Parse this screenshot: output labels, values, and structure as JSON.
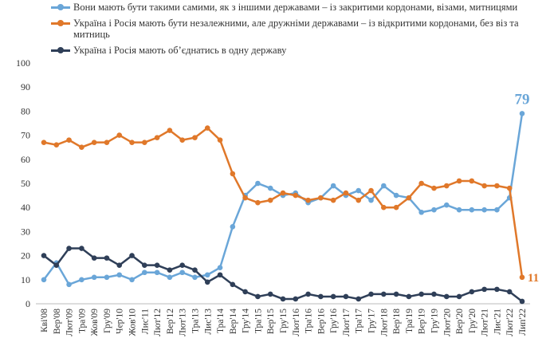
{
  "chart_data": {
    "type": "line",
    "categories": [
      "Кві'08",
      "Вер'08",
      "Лют'09",
      "Тра'09",
      "Жов'09",
      "Гру'09",
      "Чер'10",
      "Жов'10",
      "Лис'11",
      "Лют'12",
      "Вер'12",
      "Лют'13",
      "Тра'13",
      "Лис'13",
      "Тра'14",
      "Вер'14",
      "Гру'14",
      "Тра'15",
      "Вер'15",
      "Гру'15",
      "Лют'16",
      "Тра'16",
      "Вер'16",
      "Гру'16",
      "Лют'17",
      "Тра'17",
      "Гру'17",
      "Лют'18",
      "Вер'18",
      "Тра'19",
      "Вер'19",
      "Гру'19",
      "Лют'20",
      "Вер'20",
      "Гру'20",
      "Лют'21",
      "Лис'21",
      "Лют'22",
      "Лип'22"
    ],
    "series": [
      {
        "name": "Вони мають бути такими самими, як з іншими державами – із закритими кордонами, візами, митницями",
        "color": "#6aa6d8",
        "labeled_last": true,
        "values": [
          10,
          17,
          8,
          10,
          11,
          11,
          12,
          10,
          13,
          13,
          11,
          13,
          11,
          12,
          15,
          32,
          45,
          50,
          48,
          45,
          46,
          42,
          44,
          49,
          45,
          47,
          43,
          49,
          45,
          44,
          38,
          39,
          41,
          39,
          39,
          39,
          39,
          44,
          79
        ]
      },
      {
        "name": "Україна і Росія мають бути незалежними, але дружніми державами – із відкритими кордонами, без віз та митниць",
        "color": "#e0782a",
        "labeled_last": true,
        "values": [
          67,
          66,
          68,
          65,
          67,
          67,
          70,
          67,
          67,
          69,
          72,
          68,
          69,
          73,
          68,
          54,
          44,
          42,
          43,
          46,
          45,
          43,
          44,
          43,
          46,
          43,
          47,
          40,
          40,
          44,
          50,
          48,
          49,
          51,
          51,
          49,
          49,
          48,
          11
        ]
      },
      {
        "name": "Україна і Росія мають об’єднатись в одну державу",
        "color": "#2f3f58",
        "labeled_last": false,
        "values": [
          20,
          16,
          23,
          23,
          19,
          19,
          16,
          20,
          16,
          16,
          14,
          16,
          14,
          9,
          12,
          8,
          5,
          3,
          4,
          2,
          2,
          4,
          3,
          3,
          3,
          2,
          4,
          4,
          4,
          3,
          4,
          4,
          3,
          3,
          5,
          6,
          6,
          5,
          1
        ]
      }
    ],
    "ylim": [
      0,
      100
    ],
    "yticks": [
      0,
      10,
      20,
      30,
      40,
      50,
      60,
      70,
      80,
      90,
      100
    ],
    "grid": false
  }
}
